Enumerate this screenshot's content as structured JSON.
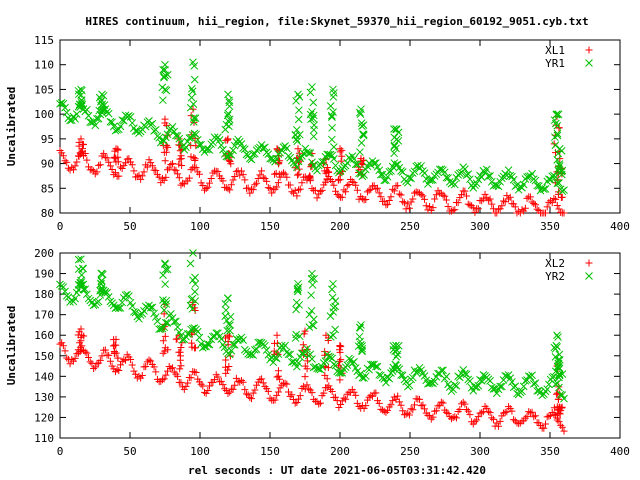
{
  "title": "HIRES continuum, hii_region, file:Skynet_59370_hii_region_60192_9051.cyb.txt",
  "xlabel": "rel seconds : UT date 2021-06-05T03:31:42.420",
  "colors": {
    "series1": "#ff0000",
    "series2": "#00c000",
    "frame": "#000000"
  },
  "chart_data": [
    {
      "type": "scatter",
      "ylabel": "Uncalibrated",
      "xlim": [
        0,
        400
      ],
      "ylim": [
        80,
        115
      ],
      "x_ticks": [
        "0",
        "50",
        "100",
        "150",
        "200",
        "250",
        "300",
        "350",
        "400"
      ],
      "y_ticks": [
        "80",
        "85",
        "90",
        "95",
        "100",
        "105",
        "110",
        "115"
      ],
      "legend_position": "top-right",
      "grid": false,
      "series": [
        {
          "name": "XL1",
          "marker": "plus",
          "color": "#ff0000",
          "trend": [
            [
              0,
              91
            ],
            [
              50,
              89
            ],
            [
              100,
              87
            ],
            [
              150,
              86
            ],
            [
              200,
              85
            ],
            [
              250,
              83
            ],
            [
              300,
              82
            ],
            [
              350,
              81
            ],
            [
              360,
              81
            ]
          ],
          "ripple_period": 16,
          "ripple_amp": 2.2,
          "spikes": [
            [
              15,
              95
            ],
            [
              40,
              93
            ],
            [
              75,
              99
            ],
            [
              85,
              95
            ],
            [
              95,
              101
            ],
            [
              120,
              95
            ],
            [
              155,
              93
            ],
            [
              170,
              93
            ],
            [
              180,
              92
            ],
            [
              190,
              91
            ],
            [
              200,
              93
            ],
            [
              215,
              91
            ],
            [
              355,
              99.5
            ],
            [
              357,
              91
            ]
          ]
        },
        {
          "name": "YR1",
          "marker": "cross",
          "color": "#00c000",
          "trend": [
            [
              0,
              101
            ],
            [
              50,
              98
            ],
            [
              100,
              94
            ],
            [
              150,
              92
            ],
            [
              200,
              90
            ],
            [
              250,
              88
            ],
            [
              300,
              87
            ],
            [
              350,
              86
            ],
            [
              360,
              86
            ]
          ],
          "ripple_period": 16,
          "ripple_amp": 2,
          "spikes": [
            [
              15,
              105
            ],
            [
              30,
              104
            ],
            [
              75,
              110
            ],
            [
              95,
              110.5
            ],
            [
              120,
              104
            ],
            [
              170,
              104
            ],
            [
              180,
              105.5
            ],
            [
              195,
              105
            ],
            [
              215,
              101
            ],
            [
              240,
              97
            ],
            [
              355,
              100
            ],
            [
              357,
              93
            ]
          ]
        }
      ]
    },
    {
      "type": "scatter",
      "ylabel": "Uncalibrated",
      "xlim": [
        0,
        400
      ],
      "ylim": [
        110,
        200
      ],
      "x_ticks": [
        "0",
        "50",
        "100",
        "150",
        "200",
        "250",
        "300",
        "350",
        "400"
      ],
      "y_ticks": [
        "110",
        "120",
        "130",
        "140",
        "150",
        "160",
        "170",
        "180",
        "190",
        "200"
      ],
      "legend_position": "top-right",
      "grid": false,
      "series": [
        {
          "name": "XL2",
          "marker": "plus",
          "color": "#ff0000",
          "trend": [
            [
              0,
              152
            ],
            [
              50,
              145
            ],
            [
              100,
              137
            ],
            [
              150,
              133
            ],
            [
              200,
              130
            ],
            [
              250,
              125
            ],
            [
              300,
              121
            ],
            [
              350,
              119
            ],
            [
              360,
              118
            ]
          ],
          "ripple_period": 16,
          "ripple_amp": 5,
          "spikes": [
            [
              15,
              163
            ],
            [
              40,
              158
            ],
            [
              75,
              175
            ],
            [
              85,
              160
            ],
            [
              95,
              176
            ],
            [
              120,
              160
            ],
            [
              155,
              160
            ],
            [
              175,
              162
            ],
            [
              190,
              160
            ],
            [
              200,
              155
            ],
            [
              355,
              145
            ],
            [
              357,
              125
            ]
          ]
        },
        {
          "name": "YR2",
          "marker": "cross",
          "color": "#00c000",
          "trend": [
            [
              0,
              182
            ],
            [
              50,
              175
            ],
            [
              100,
              158
            ],
            [
              150,
              152
            ],
            [
              200,
              145
            ],
            [
              250,
              140
            ],
            [
              300,
              137
            ],
            [
              350,
              135
            ],
            [
              360,
              134
            ]
          ],
          "ripple_period": 16,
          "ripple_amp": 5,
          "spikes": [
            [
              15,
              197
            ],
            [
              30,
              190
            ],
            [
              75,
              195
            ],
            [
              95,
              200
            ],
            [
              120,
              178
            ],
            [
              170,
              185
            ],
            [
              180,
              190
            ],
            [
              195,
              185
            ],
            [
              215,
              165
            ],
            [
              240,
              155
            ],
            [
              355,
              160
            ],
            [
              357,
              148
            ]
          ]
        }
      ]
    }
  ]
}
